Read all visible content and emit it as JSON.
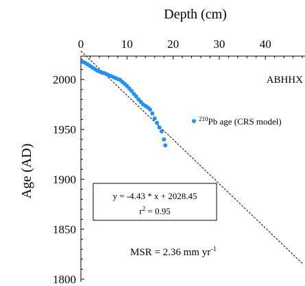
{
  "chart_data": {
    "type": "scatter",
    "title": "",
    "site_label": "ABHHX",
    "xlabel": "Depth (cm)",
    "ylabel": "Age (AD)",
    "xlim": [
      0,
      48
    ],
    "ylim": [
      1800,
      2020
    ],
    "x_ticks": [
      0,
      10,
      20,
      30,
      40
    ],
    "y_ticks": [
      1800,
      1850,
      1900,
      1950,
      2000
    ],
    "x_axis_position": "top",
    "grid": false,
    "legend": {
      "position": "right",
      "entries": [
        {
          "marker": "circle",
          "color": "#1e90ff",
          "sup": "210",
          "text": "Pb age (CRS model)"
        }
      ]
    },
    "series": [
      {
        "name": "210Pb age (CRS model)",
        "color": "#1e90ff",
        "points": [
          [
            0.5,
            2017.5
          ],
          [
            1.0,
            2016.5
          ],
          [
            1.5,
            2015
          ],
          [
            2.0,
            2013.5
          ],
          [
            2.5,
            2012
          ],
          [
            3.0,
            2010.5
          ],
          [
            3.5,
            2009
          ],
          [
            4.0,
            2008
          ],
          [
            4.5,
            2007
          ],
          [
            5.0,
            2006.5
          ],
          [
            5.5,
            2005.5
          ],
          [
            6.0,
            2004.5
          ],
          [
            6.5,
            2003.5
          ],
          [
            7.0,
            2002.5
          ],
          [
            7.5,
            2001.5
          ],
          [
            8.0,
            2000.5
          ],
          [
            8.5,
            1999.5
          ],
          [
            9.0,
            1997.5
          ],
          [
            9.5,
            1995.5
          ],
          [
            10.0,
            1993.5
          ],
          [
            10.5,
            1991
          ],
          [
            11.0,
            1988.5
          ],
          [
            11.5,
            1985.5
          ],
          [
            12.0,
            1983
          ],
          [
            12.5,
            1980
          ],
          [
            13.0,
            1977.5
          ],
          [
            13.5,
            1975
          ],
          [
            14.0,
            1973.5
          ],
          [
            14.5,
            1972
          ],
          [
            15.0,
            1970
          ],
          [
            15.5,
            1966
          ],
          [
            16.0,
            1961
          ],
          [
            16.5,
            1956.5
          ],
          [
            17.0,
            1952
          ],
          [
            17.5,
            1948
          ],
          [
            18.0,
            1940
          ],
          [
            18.3,
            1934
          ]
        ]
      }
    ],
    "regression": {
      "slope": -4.43,
      "intercept": 2028.45,
      "style": "dashed",
      "x_range": [
        0,
        48
      ],
      "equation": "y = -4.43 * x + 2028.45",
      "r2_base": "r",
      "r2_exp": "2",
      "r2_value": " = 0.95"
    },
    "annotation": {
      "msr_prefix": "MSR = 2.36 mm yr",
      "msr_exp": "-1"
    }
  }
}
